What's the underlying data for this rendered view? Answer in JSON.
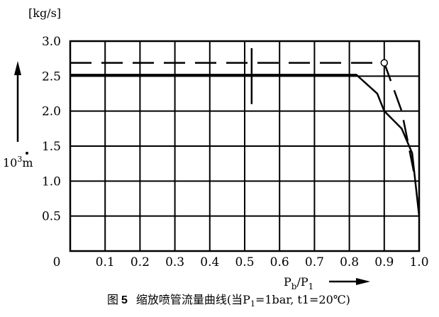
{
  "chart_data": {
    "type": "line",
    "title": "",
    "caption": {
      "fig_prefix": "图",
      "fig_num": "5",
      "text": "缩放喷管流量曲线(当P",
      "p_sub": "1",
      "text_tail": "=1bar, t1=20℃)"
    },
    "ylabel_unit": "[kg/s]",
    "ylabel_factor": "10",
    "ylabel_exp": "3",
    "ylabel_symbol": "m",
    "xlabel_main": "P",
    "xlabel_sub1": "b",
    "xlabel_sep": "/P",
    "xlabel_sub2": "1",
    "origin_label": "0",
    "x_ticks": [
      "0.1",
      "0.2",
      "0.3",
      "0.4",
      "0.5",
      "0.6",
      "0.7",
      "0.8",
      "0.9",
      "1.0"
    ],
    "y_ticks": [
      "0.5",
      "1.0",
      "1.5",
      "2.0",
      "2.5",
      "3.0"
    ],
    "xlim": [
      0,
      1.0
    ],
    "ylim": [
      0,
      3.0
    ],
    "grid": true,
    "series": [
      {
        "style": "dashed",
        "x": [
          0,
          0.1,
          0.2,
          0.3,
          0.4,
          0.5,
          0.6,
          0.7,
          0.8,
          0.9,
          0.95,
          0.99
        ],
        "y": [
          2.69,
          2.69,
          2.69,
          2.69,
          2.69,
          2.69,
          2.69,
          2.69,
          2.69,
          2.69,
          2.0,
          1.0
        ]
      },
      {
        "style": "solid",
        "x": [
          0,
          0.1,
          0.2,
          0.3,
          0.4,
          0.5,
          0.6,
          0.7,
          0.8,
          0.82,
          0.88,
          0.9,
          0.95,
          0.98,
          1.0
        ],
        "y": [
          2.52,
          2.52,
          2.52,
          2.52,
          2.52,
          2.52,
          2.52,
          2.52,
          2.52,
          2.52,
          2.25,
          2.0,
          1.75,
          1.4,
          0.5
        ]
      }
    ],
    "annotations": [
      {
        "type": "circle",
        "x": 0.9,
        "y": 2.69
      },
      {
        "type": "vline",
        "x": 0.52,
        "y_from": 2.1,
        "y_to": 2.9
      }
    ]
  }
}
